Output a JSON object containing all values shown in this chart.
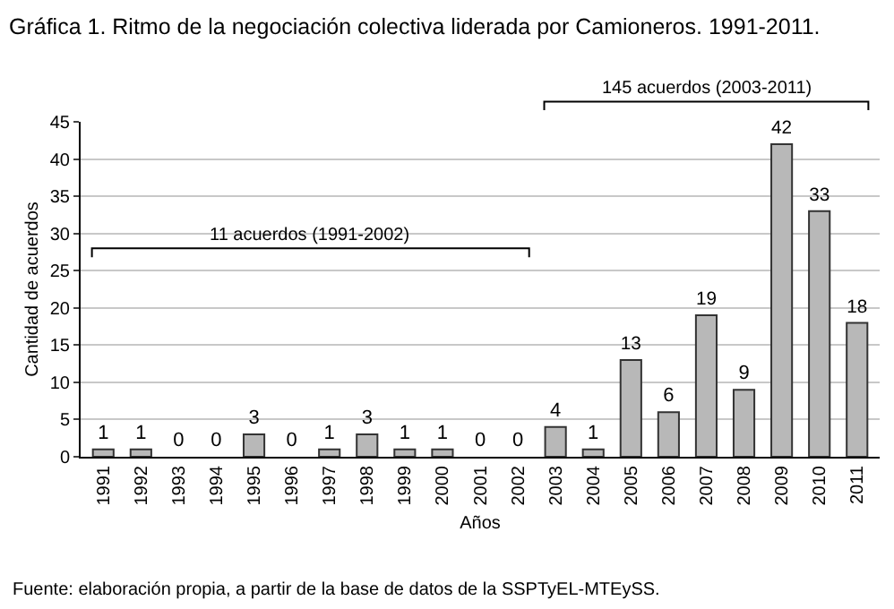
{
  "chart_data": {
    "type": "bar",
    "title": "Gráfica 1. Ritmo de la negociación colectiva liderada por Camioneros. 1991-2011.",
    "xlabel": "Años",
    "ylabel": "Cantidad de acuerdos",
    "categories": [
      "1991",
      "1992",
      "1993",
      "1994",
      "1995",
      "1996",
      "1997",
      "1998",
      "1999",
      "2000",
      "2001",
      "2002",
      "2003",
      "2004",
      "2005",
      "2006",
      "2007",
      "2008",
      "2009",
      "2010",
      "2011"
    ],
    "values": [
      1,
      1,
      0,
      0,
      3,
      0,
      1,
      3,
      1,
      1,
      0,
      0,
      4,
      1,
      13,
      6,
      19,
      9,
      42,
      33,
      18
    ],
    "color": "#b8b8b8",
    "ylim": [
      0,
      45
    ],
    "yticks": [
      0,
      5,
      10,
      15,
      20,
      25,
      30,
      35,
      40,
      45
    ],
    "grid": "y",
    "data_labels": true,
    "annotations": [
      "11 acuerdos (1991-2002)",
      "145 acuerdos (2003-2011)",
      "Fuente: elaboración propia, a partir de la base de datos de la SSPTyEL-MTEySS."
    ]
  }
}
